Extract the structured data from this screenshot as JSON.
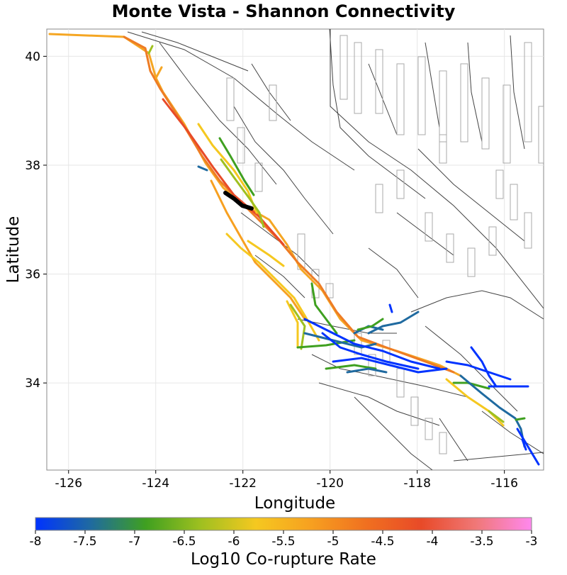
{
  "title": "Monte Vista - Shannon Connectivity",
  "map": {
    "xlabel": "Longitude",
    "ylabel": "Latitude",
    "xlim": [
      -126.5,
      -115.1
    ],
    "ylim": [
      32.4,
      40.5
    ],
    "x_ticks": [
      "-126",
      "-124",
      "-122",
      "-120",
      "-118",
      "-116"
    ],
    "x_tick_values": [
      -126,
      -124,
      -122,
      -120,
      -118,
      -116
    ],
    "y_ticks": [
      "40",
      "38",
      "36",
      "34"
    ],
    "y_tick_values": [
      40,
      38,
      36,
      34
    ],
    "grid_color": "#e6e6e6",
    "fault_color": "#444444",
    "selected_fault_color": "#000000"
  },
  "colorbar": {
    "label": "Log10 Co-rupture Rate",
    "min": -8,
    "max": -3,
    "ticks": [
      "-8",
      "-7.5",
      "-7",
      "-6.5",
      "-6",
      "-5.5",
      "-5",
      "-4.5",
      "-4",
      "-3.5",
      "-3"
    ],
    "tick_values": [
      -8,
      -7.5,
      -7,
      -6.5,
      -6,
      -5.5,
      -5,
      -4.5,
      -4,
      -3.5,
      -3
    ],
    "stops": [
      "#0033ff",
      "#1f6aa0",
      "#3fa020",
      "#9fc020",
      "#f5c820",
      "#f7a020",
      "#f07020",
      "#e84a28",
      "#f07878",
      "#ff88ee"
    ]
  }
}
